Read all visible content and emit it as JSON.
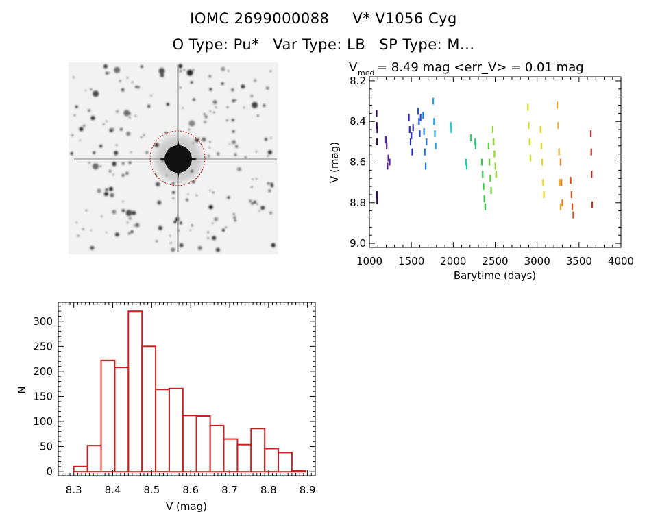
{
  "header": {
    "id_label": "IOMC 2699000088",
    "name_label": "V* V1056 Cyg",
    "otype_label": "O Type: Pu*",
    "vartype_label": "Var Type: LB",
    "sptype_label": "SP Type: M..."
  },
  "lightcurve_summary": {
    "vmed_symbol": "V",
    "vmed_subscript": "med",
    "vmed_text": "= 8.49 mag <err_V> = 0.01 mag"
  },
  "colors": {
    "hist_bar": "#cc1f1f",
    "finder_circle": "#d01010",
    "axis": "#000000"
  },
  "chart_data": [
    {
      "type": "scatter",
      "title": "",
      "xlabel": "Barytime (days)",
      "ylabel": "V (mag)",
      "xlim": [
        1000,
        4000
      ],
      "ylim": [
        9.02,
        8.18
      ],
      "y_inverted": true,
      "xticks": [
        1000,
        1500,
        2000,
        2500,
        3000,
        3500,
        4000
      ],
      "yticks": [
        8.2,
        8.4,
        8.6,
        8.8,
        9.0
      ],
      "ytick_labels": [
        "8.2",
        "8.4",
        "8.6",
        "8.8",
        "9.0"
      ],
      "grid": false,
      "series": [
        {
          "color": "#3a0a5c",
          "x": [
            1085,
            1087,
            1090,
            1092,
            1088,
            1091
          ],
          "y": [
            8.36,
            8.42,
            8.5,
            8.44,
            8.76,
            8.79
          ]
        },
        {
          "color": "#5a1e96",
          "x": [
            1195,
            1205,
            1215,
            1225,
            1240
          ],
          "y": [
            8.49,
            8.52,
            8.62,
            8.58,
            8.6
          ]
        },
        {
          "color": "#2b2bc8",
          "x": [
            1470,
            1480,
            1490,
            1500,
            1510,
            1520
          ],
          "y": [
            8.38,
            8.44,
            8.5,
            8.47,
            8.55,
            8.43
          ]
        },
        {
          "color": "#1f4fe0",
          "x": [
            1580,
            1590,
            1600,
            1610
          ],
          "y": [
            8.35,
            8.4,
            8.46,
            8.38
          ]
        },
        {
          "color": "#1a7ce6",
          "x": [
            1640,
            1650,
            1660,
            1670,
            1680
          ],
          "y": [
            8.37,
            8.45,
            8.55,
            8.62,
            8.5
          ]
        },
        {
          "color": "#1ba8e8",
          "x": [
            1760,
            1770,
            1780,
            1790
          ],
          "y": [
            8.3,
            8.4,
            8.46,
            8.52
          ]
        },
        {
          "color": "#20d0d0",
          "x": [
            1970,
            1975
          ],
          "y": [
            8.42,
            8.44
          ]
        },
        {
          "color": "#22d0a0",
          "x": [
            2150,
            2160
          ],
          "y": [
            8.6,
            8.62
          ]
        },
        {
          "color": "#28d070",
          "x": [
            2210,
            2260,
            2265
          ],
          "y": [
            8.48,
            8.5,
            8.52
          ]
        },
        {
          "color": "#2ad040",
          "x": [
            2340,
            2350,
            2360,
            2370,
            2380
          ],
          "y": [
            8.6,
            8.66,
            8.72,
            8.78,
            8.82
          ]
        },
        {
          "color": "#5ad030",
          "x": [
            2420,
            2430,
            2440,
            2450
          ],
          "y": [
            8.52,
            8.6,
            8.68,
            8.74
          ]
        },
        {
          "color": "#8fd82a",
          "x": [
            2470,
            2480,
            2490,
            2500,
            2510
          ],
          "y": [
            8.44,
            8.5,
            8.56,
            8.62,
            8.66
          ]
        },
        {
          "color": "#cfe01c",
          "x": [
            2890,
            2900,
            2910,
            2920
          ],
          "y": [
            8.33,
            8.42,
            8.5,
            8.58
          ]
        },
        {
          "color": "#ecd21a",
          "x": [
            3040,
            3050,
            3060,
            3070,
            3080
          ],
          "y": [
            8.44,
            8.52,
            8.6,
            8.7,
            8.76
          ]
        },
        {
          "color": "#f0a820",
          "x": [
            3240,
            3250,
            3260,
            3270,
            3280
          ],
          "y": [
            8.32,
            8.42,
            8.55,
            8.7,
            8.82
          ]
        },
        {
          "color": "#e27a1c",
          "x": [
            3280,
            3290,
            3300
          ],
          "y": [
            8.6,
            8.7,
            8.8
          ]
        },
        {
          "color": "#d8501a",
          "x": [
            3400,
            3410,
            3420,
            3430
          ],
          "y": [
            8.69,
            8.76,
            8.82,
            8.86
          ]
        },
        {
          "color": "#d62a20",
          "x": [
            3640,
            3645,
            3650,
            3655
          ],
          "y": [
            8.46,
            8.55,
            8.66,
            8.81
          ]
        }
      ]
    },
    {
      "type": "bar",
      "title": "",
      "xlabel": "V (mag)",
      "ylabel": "N",
      "xlim": [
        8.26,
        8.92
      ],
      "ylim": [
        -8,
        338
      ],
      "xticks": [
        8.3,
        8.4,
        8.5,
        8.6,
        8.7,
        8.8,
        8.9
      ],
      "xtick_labels": [
        "8.3",
        "8.4",
        "8.5",
        "8.6",
        "8.7",
        "8.8",
        "8.9"
      ],
      "yticks": [
        0,
        50,
        100,
        150,
        200,
        250,
        300
      ],
      "bin_edges": [
        8.3,
        8.335,
        8.37,
        8.405,
        8.44,
        8.475,
        8.51,
        8.545,
        8.58,
        8.615,
        8.65,
        8.685,
        8.72,
        8.755,
        8.79,
        8.825,
        8.86,
        8.895
      ],
      "values": [
        10,
        52,
        222,
        208,
        320,
        250,
        164,
        166,
        112,
        111,
        92,
        65,
        54,
        86,
        46,
        38,
        2
      ]
    }
  ]
}
